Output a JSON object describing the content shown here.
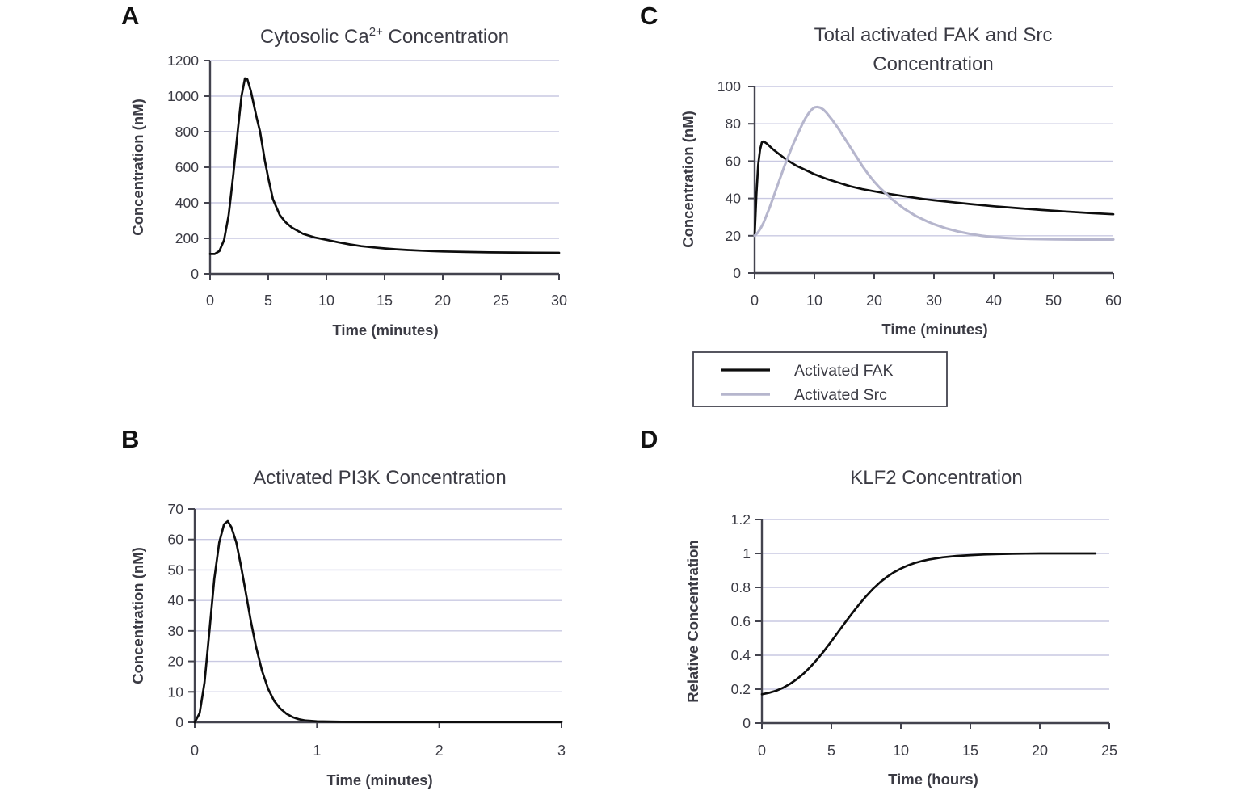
{
  "figure": {
    "background": "#ffffff",
    "kind": "four-panel line chart figure"
  },
  "colors": {
    "axis": "#43434e",
    "grid": "#c9c9e2",
    "text": "#3b3b44",
    "black_series": "#0d0d0d",
    "lavender_series": "#b6b6cd",
    "legend_border": "#43434e"
  },
  "chart_data": [
    {
      "id": "cytosolic_ca",
      "panel_letter": "A",
      "type": "line",
      "title": "Cytosolic Ca2+ Concentration",
      "title_lines": [
        [
          {
            "text": "Cytosolic Ca"
          },
          {
            "text": "2+",
            "sup": true
          },
          {
            "text": " Concentration"
          }
        ]
      ],
      "xlabel": "Time (minutes)",
      "ylabel": "Concentration (nM)",
      "xlim": [
        0,
        30
      ],
      "ylim": [
        0,
        1200
      ],
      "xticks": [
        "0",
        "5",
        "10",
        "15",
        "20",
        "25",
        "30"
      ],
      "yticks": [
        "0",
        "200",
        "400",
        "600",
        "800",
        "1000",
        "1200"
      ],
      "grid": "horizontal",
      "legend_position": "none",
      "series": [
        {
          "name": "Cytosolic Ca2+",
          "color": "#0d0d0d",
          "points": [
            [
              0,
              112
            ],
            [
              0.4,
              112
            ],
            [
              0.8,
              128
            ],
            [
              1.2,
              190
            ],
            [
              1.6,
              330
            ],
            [
              2.0,
              560
            ],
            [
              2.4,
              820
            ],
            [
              2.7,
              1000
            ],
            [
              3.0,
              1100
            ],
            [
              3.2,
              1095
            ],
            [
              3.5,
              1030
            ],
            [
              4.0,
              880
            ],
            [
              4.3,
              800
            ],
            [
              4.7,
              640
            ],
            [
              5.0,
              540
            ],
            [
              5.4,
              420
            ],
            [
              6.0,
              330
            ],
            [
              6.5,
              290
            ],
            [
              7.0,
              262
            ],
            [
              8.0,
              225
            ],
            [
              9.0,
              205
            ],
            [
              10,
              192
            ],
            [
              11,
              178
            ],
            [
              12,
              166
            ],
            [
              13,
              156
            ],
            [
              14,
              149
            ],
            [
              15,
              143
            ],
            [
              16,
              138
            ],
            [
              17,
              134
            ],
            [
              18,
              131
            ],
            [
              19,
              128
            ],
            [
              20,
              126
            ],
            [
              22,
              123
            ],
            [
              24,
              121
            ],
            [
              26,
              120
            ],
            [
              28,
              119
            ],
            [
              30,
              118
            ]
          ]
        }
      ]
    },
    {
      "id": "fak_src",
      "panel_letter": "C",
      "type": "line",
      "title": "Total activated FAK and Src Concentration",
      "title_lines": [
        [
          {
            "text": "Total activated FAK and Src"
          }
        ],
        [
          {
            "text": "Concentration"
          }
        ]
      ],
      "xlabel": "Time (minutes)",
      "ylabel": "Concentration (nM)",
      "xlim": [
        0,
        60
      ],
      "ylim": [
        0,
        100
      ],
      "xticks": [
        "0",
        "10",
        "20",
        "30",
        "40",
        "50",
        "60"
      ],
      "yticks": [
        "0",
        "20",
        "40",
        "60",
        "80",
        "100"
      ],
      "grid": "horizontal",
      "legend_position": "below",
      "series": [
        {
          "name": "Activated FAK",
          "color": "#0d0d0d",
          "points": [
            [
              0,
              20
            ],
            [
              0.3,
              42
            ],
            [
              0.6,
              58
            ],
            [
              0.9,
              66
            ],
            [
              1.2,
              70
            ],
            [
              1.5,
              70.5
            ],
            [
              2,
              69.5
            ],
            [
              2.5,
              68
            ],
            [
              3,
              66.5
            ],
            [
              4,
              64
            ],
            [
              5,
              61.5
            ],
            [
              6,
              59.5
            ],
            [
              7,
              57.5
            ],
            [
              8,
              56
            ],
            [
              9,
              54.5
            ],
            [
              10,
              53
            ],
            [
              12,
              50.5
            ],
            [
              14,
              48.5
            ],
            [
              16,
              46.5
            ],
            [
              18,
              45
            ],
            [
              20,
              43.8
            ],
            [
              22,
              42.7
            ],
            [
              25,
              41.2
            ],
            [
              28,
              39.8
            ],
            [
              30,
              39
            ],
            [
              33,
              38
            ],
            [
              36,
              37
            ],
            [
              40,
              35.8
            ],
            [
              44,
              34.8
            ],
            [
              48,
              33.8
            ],
            [
              52,
              33
            ],
            [
              56,
              32.2
            ],
            [
              60,
              31.5
            ]
          ]
        },
        {
          "name": "Activated Src",
          "color": "#b6b6cd",
          "points": [
            [
              0,
              20
            ],
            [
              0.5,
              21.5
            ],
            [
              1,
              24
            ],
            [
              1.5,
              27
            ],
            [
              2,
              31
            ],
            [
              2.5,
              35
            ],
            [
              3,
              39.5
            ],
            [
              3.5,
              44
            ],
            [
              4,
              48.5
            ],
            [
              4.5,
              53
            ],
            [
              5,
              57.5
            ],
            [
              5.5,
              61.5
            ],
            [
              6,
              65.5
            ],
            [
              6.5,
              69.5
            ],
            [
              7,
              73
            ],
            [
              7.5,
              76.5
            ],
            [
              8,
              80
            ],
            [
              8.5,
              83
            ],
            [
              9,
              85.5
            ],
            [
              9.5,
              87.5
            ],
            [
              10,
              88.8
            ],
            [
              10.5,
              89
            ],
            [
              11,
              88.6
            ],
            [
              11.5,
              87.6
            ],
            [
              12,
              86
            ],
            [
              13,
              82
            ],
            [
              14,
              77.5
            ],
            [
              15,
              72.5
            ],
            [
              16,
              67.5
            ],
            [
              17,
              62.5
            ],
            [
              18,
              57.5
            ],
            [
              19,
              53
            ],
            [
              20,
              49
            ],
            [
              21,
              45.5
            ],
            [
              22,
              42.5
            ],
            [
              23,
              39.5
            ],
            [
              24,
              37
            ],
            [
              25,
              34.5
            ],
            [
              26,
              32.5
            ],
            [
              27,
              30.5
            ],
            [
              28,
              29
            ],
            [
              29,
              27.5
            ],
            [
              30,
              26.2
            ],
            [
              32,
              24
            ],
            [
              34,
              22.3
            ],
            [
              36,
              21
            ],
            [
              38,
              20
            ],
            [
              40,
              19.2
            ],
            [
              42,
              18.8
            ],
            [
              44,
              18.5
            ],
            [
              46,
              18.3
            ],
            [
              48,
              18.2
            ],
            [
              50,
              18.1
            ],
            [
              54,
              18
            ],
            [
              58,
              18
            ],
            [
              60,
              18
            ]
          ]
        }
      ]
    },
    {
      "id": "activated_pi3k",
      "panel_letter": "B",
      "type": "line",
      "title": "Activated PI3K Concentration",
      "title_lines": [
        [
          {
            "text": "Activated PI3K Concentration"
          }
        ]
      ],
      "xlabel": "Time (minutes)",
      "ylabel": "Concentration (nM)",
      "xlim": [
        0,
        3
      ],
      "ylim": [
        0,
        70
      ],
      "xticks": [
        "0",
        "1",
        "2",
        "3"
      ],
      "yticks": [
        "0",
        "10",
        "20",
        "30",
        "40",
        "50",
        "60",
        "70"
      ],
      "grid": "horizontal",
      "legend_position": "none",
      "series": [
        {
          "name": "Activated PI3K",
          "color": "#0d0d0d",
          "points": [
            [
              0,
              0
            ],
            [
              0.04,
              3
            ],
            [
              0.08,
              13
            ],
            [
              0.12,
              30
            ],
            [
              0.16,
              47
            ],
            [
              0.2,
              59
            ],
            [
              0.24,
              65
            ],
            [
              0.27,
              66
            ],
            [
              0.3,
              64
            ],
            [
              0.34,
              59
            ],
            [
              0.38,
              51
            ],
            [
              0.42,
              42
            ],
            [
              0.46,
              33
            ],
            [
              0.5,
              25
            ],
            [
              0.55,
              17
            ],
            [
              0.6,
              11
            ],
            [
              0.65,
              7
            ],
            [
              0.7,
              4.5
            ],
            [
              0.75,
              2.8
            ],
            [
              0.8,
              1.7
            ],
            [
              0.85,
              1
            ],
            [
              0.9,
              0.6
            ],
            [
              1,
              0.3
            ],
            [
              1.2,
              0.15
            ],
            [
              1.5,
              0.1
            ],
            [
              2,
              0.1
            ],
            [
              2.5,
              0.1
            ],
            [
              3,
              0.1
            ]
          ]
        }
      ]
    },
    {
      "id": "klf2",
      "panel_letter": "D",
      "type": "line",
      "title": "KLF2 Concentration",
      "title_lines": [
        [
          {
            "text": "KLF2 Concentration"
          }
        ]
      ],
      "xlabel": "Time (hours)",
      "ylabel": "Relative Concentration",
      "xlim": [
        0,
        25
      ],
      "ylim": [
        0,
        1.2
      ],
      "xticks": [
        "0",
        "5",
        "10",
        "15",
        "20",
        "25"
      ],
      "yticks": [
        "0",
        "0.2",
        "0.4",
        "0.6",
        "0.8",
        "1",
        "1.2"
      ],
      "grid": "horizontal",
      "legend_position": "none",
      "series": [
        {
          "name": "KLF2",
          "color": "#0d0d0d",
          "points": [
            [
              0,
              0.17
            ],
            [
              0.5,
              0.178
            ],
            [
              1,
              0.19
            ],
            [
              1.5,
              0.207
            ],
            [
              2,
              0.23
            ],
            [
              2.5,
              0.258
            ],
            [
              3,
              0.292
            ],
            [
              3.5,
              0.332
            ],
            [
              4,
              0.378
            ],
            [
              4.5,
              0.428
            ],
            [
              5,
              0.482
            ],
            [
              5.5,
              0.538
            ],
            [
              6,
              0.594
            ],
            [
              6.5,
              0.648
            ],
            [
              7,
              0.7
            ],
            [
              7.5,
              0.748
            ],
            [
              8,
              0.792
            ],
            [
              8.5,
              0.83
            ],
            [
              9,
              0.862
            ],
            [
              9.5,
              0.889
            ],
            [
              10,
              0.911
            ],
            [
              10.5,
              0.929
            ],
            [
              11,
              0.944
            ],
            [
              11.5,
              0.955
            ],
            [
              12,
              0.964
            ],
            [
              13,
              0.977
            ],
            [
              14,
              0.985
            ],
            [
              15,
              0.99
            ],
            [
              16,
              0.994
            ],
            [
              17,
              0.996
            ],
            [
              18,
              0.998
            ],
            [
              19,
              0.999
            ],
            [
              20,
              1.0
            ],
            [
              22,
              1.0
            ],
            [
              24,
              1.0
            ]
          ]
        }
      ]
    }
  ]
}
